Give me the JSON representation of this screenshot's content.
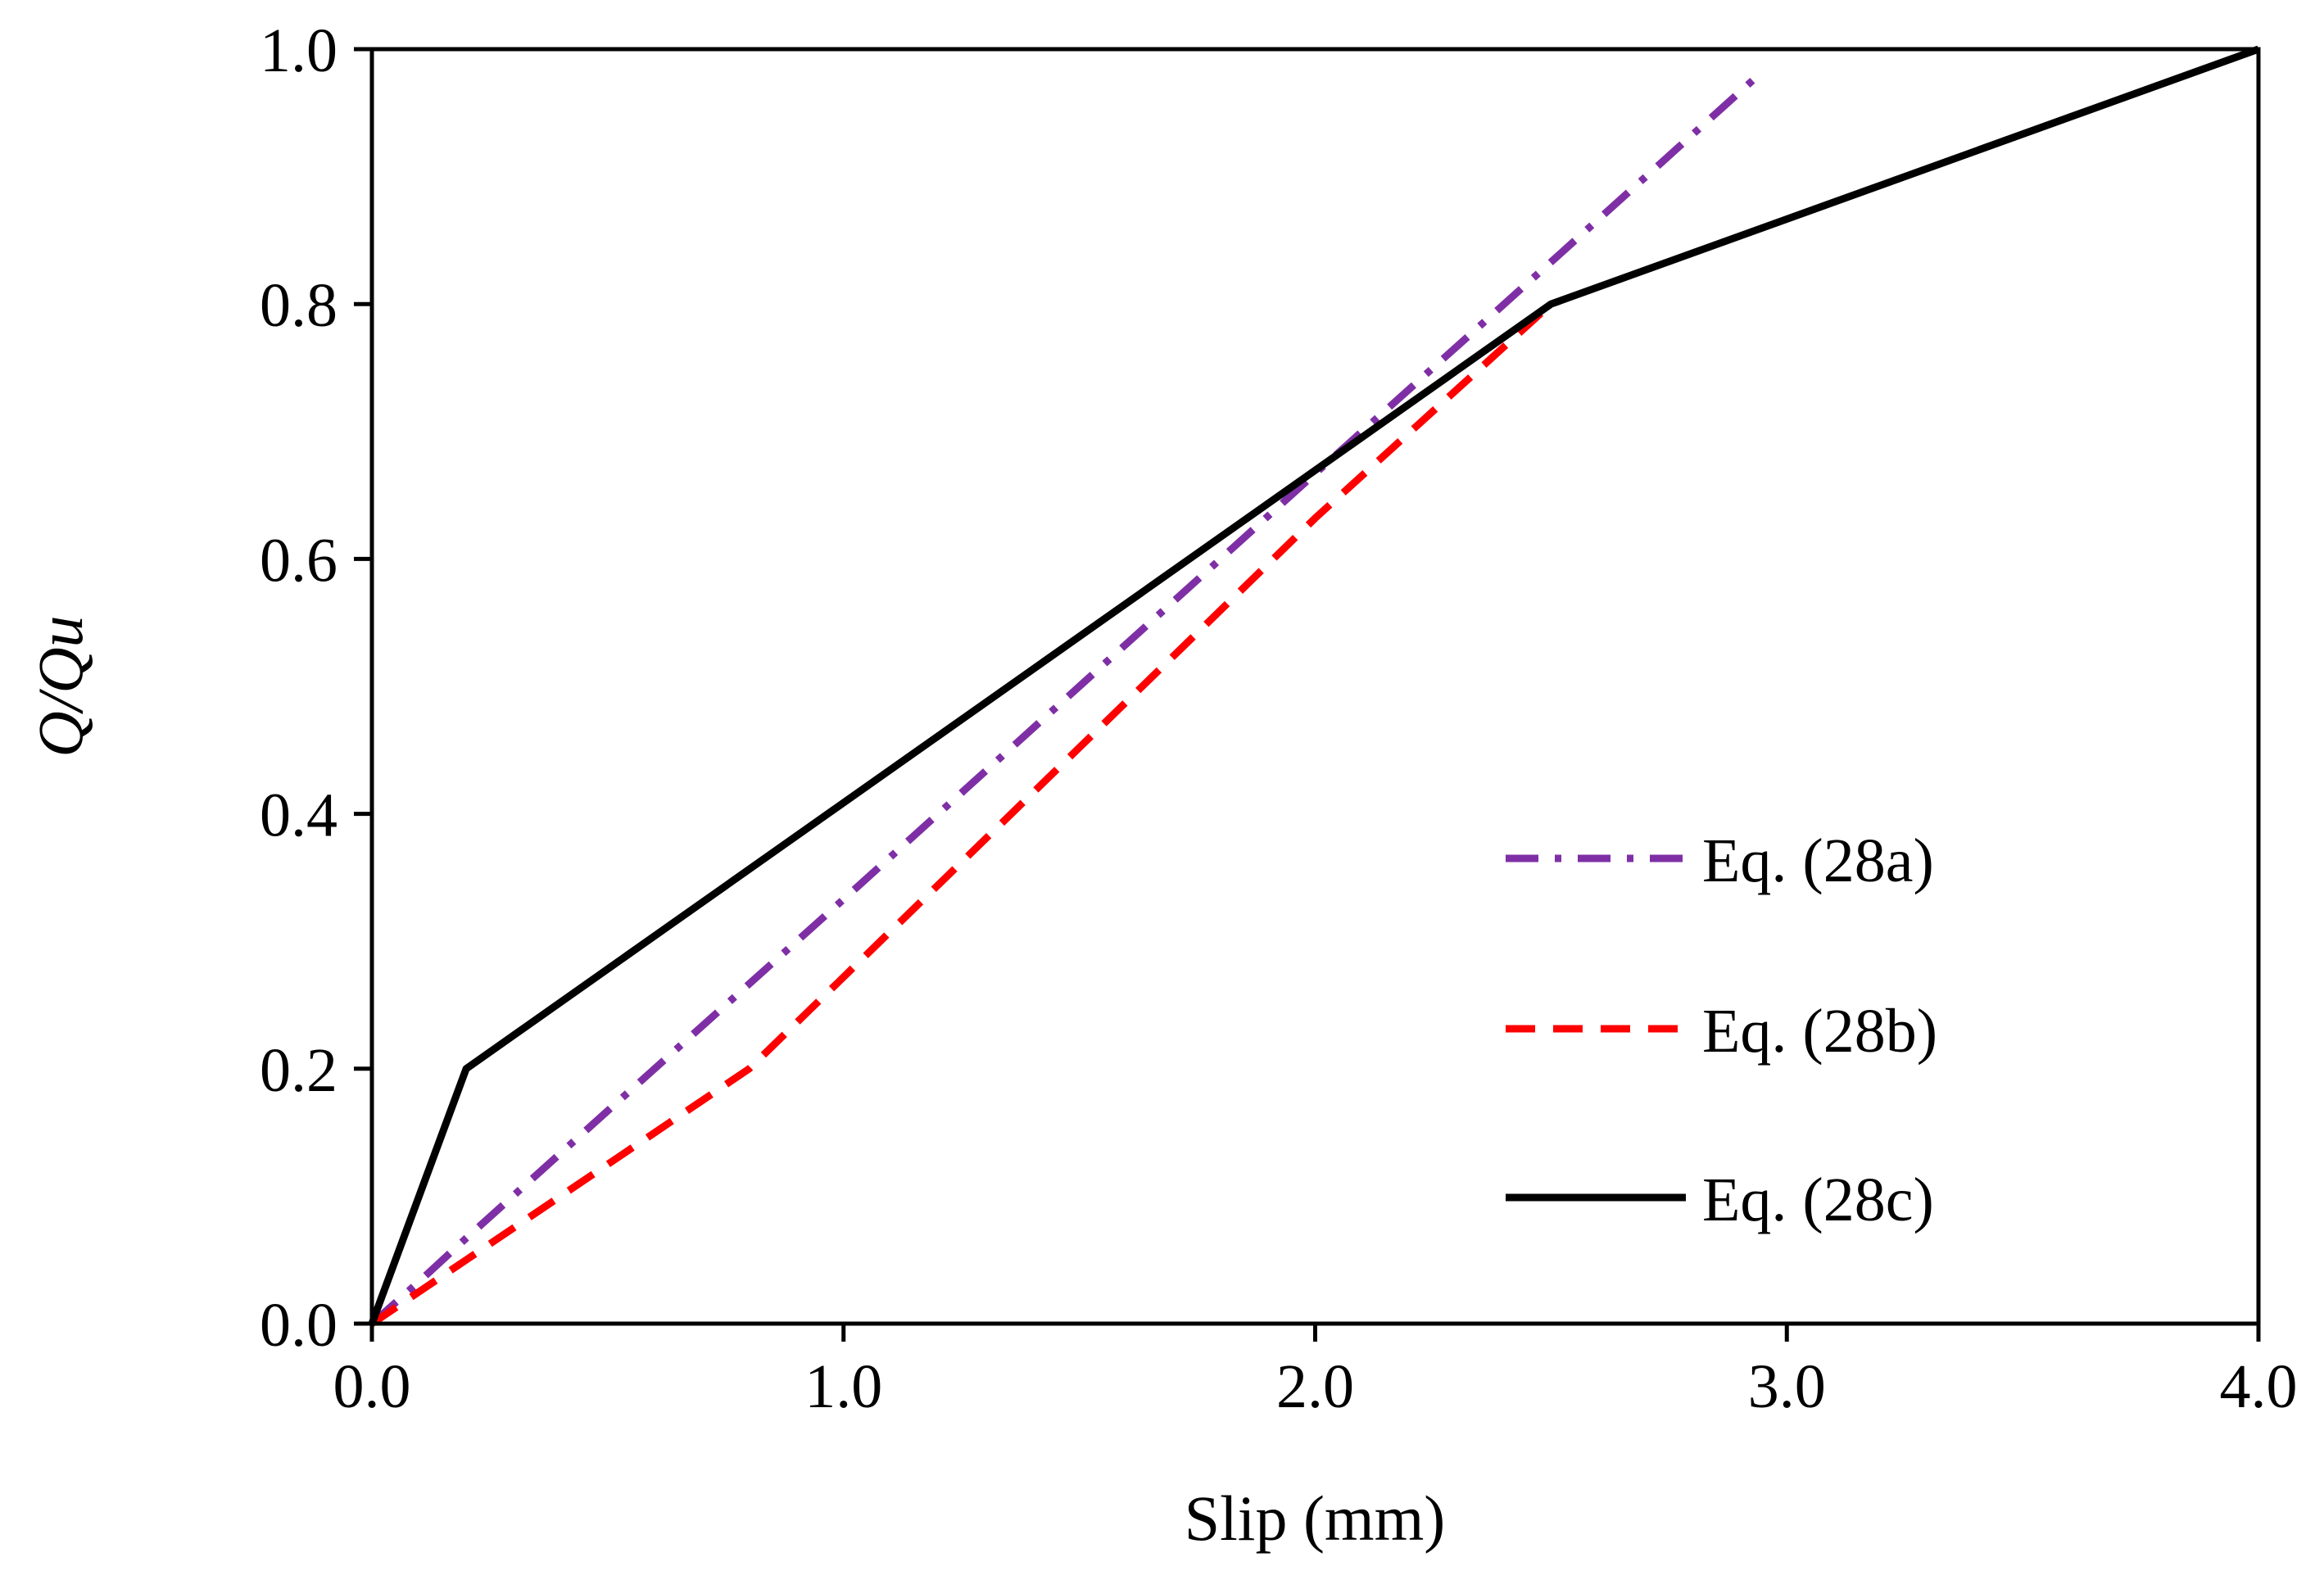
{
  "chart_data": {
    "type": "line",
    "title": "",
    "xlabel": "Slip (mm)",
    "ylabel": "Q/Qu",
    "xlim": [
      0,
      4
    ],
    "ylim": [
      0,
      1
    ],
    "x_ticks": [
      0,
      1,
      2,
      3,
      4
    ],
    "x_tick_labels": [
      "0.0",
      "1.0",
      "2.0",
      "3.0",
      "4.0"
    ],
    "y_ticks": [
      0,
      0.2,
      0.4,
      0.6,
      0.8,
      1.0
    ],
    "y_tick_labels": [
      "0.0",
      "0.2",
      "0.4",
      "0.6",
      "0.8",
      "1.0"
    ],
    "grid": false,
    "legend_position": "bottom-right",
    "series": [
      {
        "name": "Eq. (28a)",
        "style": "dash-dot",
        "color": "#7f2fa5",
        "x": [
          0.0,
          0.1,
          0.2,
          0.5,
          1.0,
          1.5,
          2.0,
          2.5,
          2.95
        ],
        "y": [
          0.0,
          0.033,
          0.067,
          0.167,
          0.333,
          0.5,
          0.667,
          0.833,
          0.983
        ]
      },
      {
        "name": "Eq. (28b)",
        "style": "dashed",
        "color": "#ff0000",
        "x": [
          0.0,
          0.2,
          0.4,
          0.6,
          0.8,
          1.0,
          1.5,
          2.0,
          2.5
        ],
        "y": [
          0.0,
          0.05,
          0.1,
          0.15,
          0.2,
          0.272,
          0.452,
          0.632,
          0.8
        ]
      },
      {
        "name": "Eq. (28c)",
        "style": "solid",
        "color": "#000000",
        "x": [
          0.0,
          0.2,
          2.5,
          4.0
        ],
        "y": [
          0.0,
          0.2,
          0.8,
          1.0
        ]
      }
    ]
  }
}
